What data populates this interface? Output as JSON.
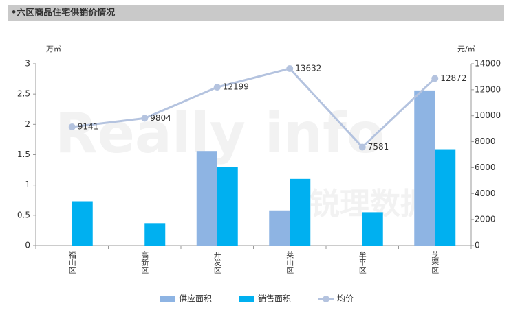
{
  "chart_data": {
    "type": "bar-line",
    "title": "•六区商品住宅供销价情况",
    "watermark": [
      "Really info",
      "锐理数据"
    ],
    "y_unit": "万㎡",
    "y2_unit": "元/㎡",
    "categories": [
      "福山区",
      "高新区",
      "开发区",
      "莱山区",
      "牟平区",
      "芝罘区"
    ],
    "series": [
      {
        "name": "供应面积",
        "type": "bar",
        "color": "#8eb4e3",
        "values": [
          null,
          null,
          1.56,
          0.58,
          null,
          2.56
        ]
      },
      {
        "name": "销售面积",
        "type": "bar",
        "color": "#00b0f0",
        "values": [
          0.73,
          0.37,
          1.3,
          1.1,
          0.55,
          1.59
        ]
      },
      {
        "name": "均价",
        "type": "line",
        "axis": "y2",
        "color": "#b4c3df",
        "values": [
          9141,
          9804,
          12199,
          13632,
          7581,
          12872
        ]
      }
    ],
    "ylim": [
      0,
      3
    ],
    "yticks": [
      0,
      0.5,
      1,
      1.5,
      2,
      2.5,
      3
    ],
    "y2lim": [
      0,
      14000
    ],
    "y2ticks": [
      0,
      2000,
      4000,
      6000,
      8000,
      10000,
      12000,
      14000
    ],
    "legend": "bottom"
  }
}
